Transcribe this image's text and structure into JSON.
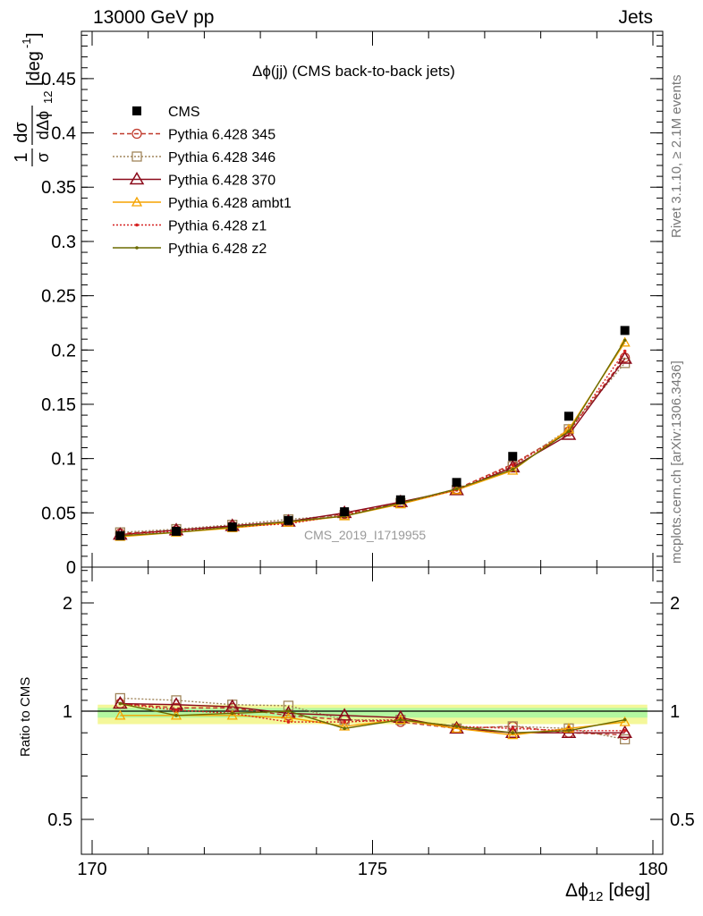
{
  "header": {
    "energy_label": "13000 GeV pp",
    "process_label": "Jets",
    "plot_title": "Δϕ(jj) (CMS back-to-back jets)",
    "watermark": "CMS_2019_I1719955",
    "rivet_note": "Rivet 3.1.10, ≥ 2.1M events",
    "source_note": "mcplots.cern.ch [arXiv:1306.3436]"
  },
  "axes": {
    "x_label": "Δϕ",
    "x_label_sub": "12",
    "x_label_unit": "[deg]",
    "y_label_main": "1/σ dσ/dΔϕ12 [deg⁻¹]",
    "y_label_ratio": "Ratio to CMS"
  },
  "chart_data": [
    {
      "type": "line",
      "panel": "main",
      "x": [
        170.5,
        171.5,
        172.5,
        173.5,
        174.5,
        175.5,
        176.5,
        177.5,
        178.5,
        179.5
      ],
      "xlim": [
        170,
        180
      ],
      "ylim": [
        0,
        0.5
      ],
      "x_ticks": [
        "170",
        "175",
        "180"
      ],
      "y_ticks": [
        "0",
        "0.05",
        "0.1",
        "0.15",
        "0.2",
        "0.25",
        "0.3",
        "0.35",
        "0.4",
        "0.45"
      ],
      "series": [
        {
          "name": "CMS",
          "style": "data",
          "color": "#000000",
          "values": [
            0.029,
            0.033,
            0.037,
            0.043,
            0.051,
            0.062,
            0.078,
            0.102,
            0.139,
            0.218
          ]
        },
        {
          "name": "Pythia 6.428 345",
          "style": "circle-dashed",
          "color": "#c0392b",
          "values": [
            0.031,
            0.034,
            0.038,
            0.042,
            0.049,
            0.059,
            0.072,
            0.095,
            0.125,
            0.193
          ]
        },
        {
          "name": "Pythia 6.428 346",
          "style": "square-dotted",
          "color": "#a0855b",
          "values": [
            0.032,
            0.035,
            0.039,
            0.044,
            0.048,
            0.059,
            0.071,
            0.093,
            0.127,
            0.188
          ]
        },
        {
          "name": "Pythia 6.428 370",
          "style": "triangle-solid",
          "color": "#8b0a1a",
          "values": [
            0.03,
            0.034,
            0.038,
            0.042,
            0.05,
            0.06,
            0.071,
            0.092,
            0.122,
            0.192
          ]
        },
        {
          "name": "Pythia 6.428 ambt1",
          "style": "triangle-orange",
          "color": "#f5a300",
          "values": [
            0.028,
            0.032,
            0.036,
            0.041,
            0.047,
            0.058,
            0.071,
            0.089,
            0.127,
            0.207
          ]
        },
        {
          "name": "Pythia 6.428 z1",
          "style": "dot-dotted",
          "color": "#d62020",
          "values": [
            0.03,
            0.033,
            0.037,
            0.04,
            0.048,
            0.059,
            0.071,
            0.094,
            0.124,
            0.199
          ]
        },
        {
          "name": "Pythia 6.428 z2",
          "style": "dot-solid",
          "color": "#6b6b00",
          "values": [
            0.029,
            0.032,
            0.037,
            0.042,
            0.047,
            0.059,
            0.072,
            0.09,
            0.125,
            0.209
          ]
        }
      ]
    },
    {
      "type": "line",
      "panel": "ratio",
      "x": [
        170.5,
        171.5,
        172.5,
        173.5,
        174.5,
        175.5,
        176.5,
        177.5,
        178.5,
        179.5
      ],
      "xlim": [
        170,
        180
      ],
      "ylim": [
        0.35,
        2.4
      ],
      "y_ticks": [
        "0.5",
        "1",
        "2"
      ],
      "band": {
        "stat_halfwidth": 0.03,
        "total_halfwidth": 0.06
      },
      "series": [
        {
          "name": "Pythia 6.428 345",
          "values": [
            1.07,
            1.03,
            1.03,
            0.98,
            0.96,
            0.95,
            0.92,
            0.93,
            0.9,
            0.89
          ]
        },
        {
          "name": "Pythia 6.428 346",
          "values": [
            1.12,
            1.1,
            1.06,
            1.05,
            0.96,
            0.96,
            0.92,
            0.93,
            0.92,
            0.87
          ]
        },
        {
          "name": "Pythia 6.428 370",
          "values": [
            1.07,
            1.06,
            1.04,
            0.99,
            0.98,
            0.97,
            0.92,
            0.9,
            0.9,
            0.9
          ]
        },
        {
          "name": "Pythia 6.428 ambt1",
          "values": [
            0.98,
            0.98,
            0.98,
            0.97,
            0.93,
            0.96,
            0.92,
            0.89,
            0.92,
            0.95
          ]
        },
        {
          "name": "Pythia 6.428 z1",
          "values": [
            1.07,
            1.01,
            0.99,
            0.95,
            0.95,
            0.96,
            0.93,
            0.92,
            0.91,
            0.91
          ]
        },
        {
          "name": "Pythia 6.428 z2",
          "values": [
            1.07,
            0.98,
            0.99,
            1.0,
            0.92,
            0.96,
            0.93,
            0.9,
            0.91,
            0.96
          ]
        }
      ]
    }
  ],
  "legend": {
    "entries": [
      "CMS",
      "Pythia 6.428 345",
      "Pythia 6.428 346",
      "Pythia 6.428 370",
      "Pythia 6.428 ambt1",
      "Pythia 6.428 z1",
      "Pythia 6.428 z2"
    ]
  }
}
